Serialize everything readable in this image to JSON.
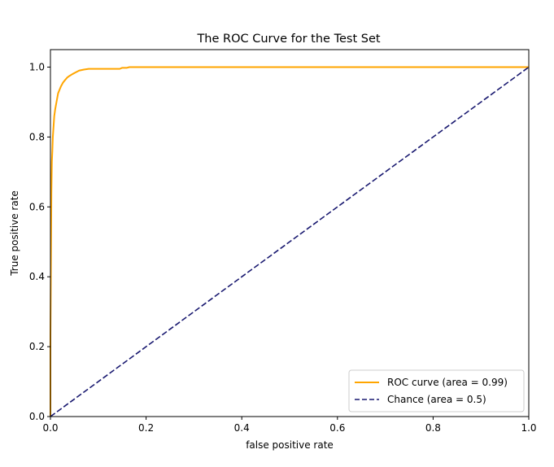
{
  "chart_data": {
    "type": "line",
    "title": "The ROC Curve for the Test Set",
    "xlabel": "false positive rate",
    "ylabel": "True positive rate",
    "xlim": [
      0.0,
      1.0
    ],
    "ylim": [
      0.0,
      1.05
    ],
    "xticks": [
      0.0,
      0.2,
      0.4,
      0.6,
      0.8,
      1.0
    ],
    "xtick_labels": [
      "0.0",
      "0.2",
      "0.4",
      "0.6",
      "0.8",
      "1.0"
    ],
    "yticks": [
      0.0,
      0.2,
      0.4,
      0.6,
      0.8,
      1.0
    ],
    "ytick_labels": [
      "0.0",
      "0.2",
      "0.4",
      "0.6",
      "0.8",
      "1.0"
    ],
    "grid": false,
    "legend_position": "bottom-right",
    "series": [
      {
        "name": "ROC curve (area = 0.99)",
        "color": "#ffa500",
        "style": "solid",
        "x": [
          0.0,
          0.0,
          0.002,
          0.003,
          0.004,
          0.005,
          0.006,
          0.007,
          0.008,
          0.01,
          0.012,
          0.014,
          0.016,
          0.019,
          0.022,
          0.026,
          0.03,
          0.035,
          0.04,
          0.046,
          0.053,
          0.06,
          0.07,
          0.08,
          0.1,
          0.12,
          0.145,
          0.15,
          0.16,
          0.165,
          0.2,
          0.4,
          0.6,
          0.8,
          1.0
        ],
        "y": [
          0.0,
          0.23,
          0.64,
          0.73,
          0.76,
          0.8,
          0.82,
          0.84,
          0.86,
          0.88,
          0.895,
          0.91,
          0.925,
          0.935,
          0.945,
          0.955,
          0.962,
          0.97,
          0.975,
          0.98,
          0.985,
          0.99,
          0.993,
          0.995,
          0.995,
          0.995,
          0.995,
          0.998,
          0.998,
          1.0,
          1.0,
          1.0,
          1.0,
          1.0,
          1.0
        ]
      },
      {
        "name": "Chance (area = 0.5)",
        "color": "#191970",
        "style": "dashed",
        "x": [
          0.0,
          1.0
        ],
        "y": [
          0.0,
          1.0
        ]
      }
    ]
  }
}
